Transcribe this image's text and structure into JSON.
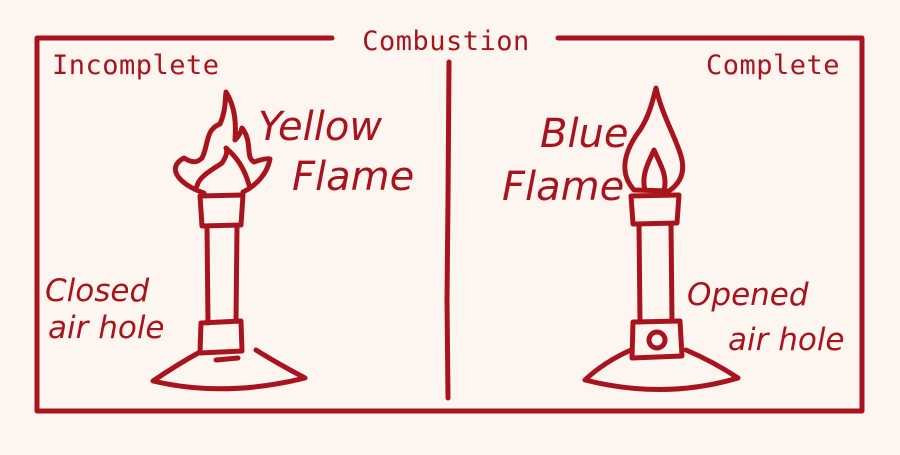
{
  "diagram": {
    "title": "Combustion",
    "ink_color": "#a8141e",
    "background_color": "#fdf5f0",
    "left_panel": {
      "heading": "Incomplete",
      "flame_label_line1": "Yellow",
      "flame_label_line2": "Flame",
      "hole_label_line1": "Closed",
      "hole_label_line2": "air hole"
    },
    "right_panel": {
      "heading": "Complete",
      "flame_label_line1": "Blue",
      "flame_label_line2": "Flame",
      "hole_label_line1": "Opened",
      "hole_label_line2": "air hole"
    }
  }
}
